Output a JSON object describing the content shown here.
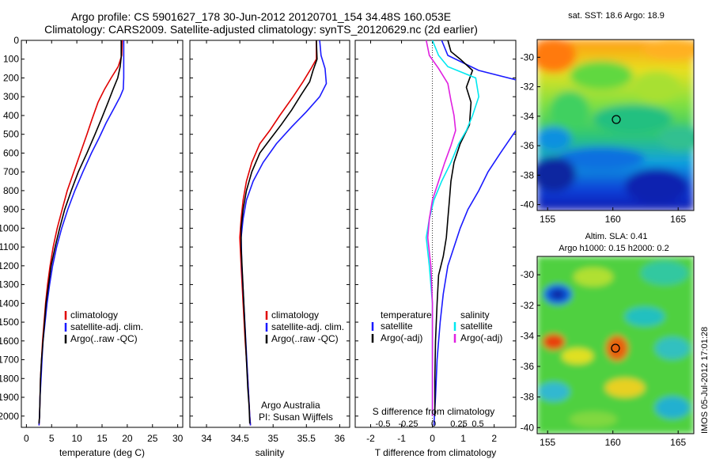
{
  "header": {
    "line1": "Argo profile: CS 5901627_178 30-Jun-2012 20120701_154 34.48S 160.053E",
    "line2": "Climatology: CARS2009. Satellite-adjusted climatology: synTS_20120629.nc (2d earlier)"
  },
  "colors": {
    "climatology": "#e00000",
    "satellite": "#1a1aff",
    "argo": "#000000",
    "cyan": "#00e8f0",
    "magenta": "#e020e0"
  },
  "credit": {
    "line1": "Argo Australia",
    "line2": "PI: Susan Wijffels"
  },
  "timestamp": "IMOS 05-Jul-2012 17:01:28",
  "chart_data": [
    {
      "type": "line",
      "id": "temperature",
      "xlabel": "temperature (deg C)",
      "xlim": [
        -1,
        31
      ],
      "ylim": [
        0,
        2060
      ],
      "xticks": [
        0,
        5,
        10,
        15,
        20,
        25,
        30
      ],
      "yticks": [
        0,
        100,
        200,
        300,
        400,
        500,
        600,
        700,
        800,
        900,
        1000,
        1100,
        1200,
        1300,
        1400,
        1500,
        1600,
        1700,
        1800,
        1900,
        2000
      ],
      "legend": [
        "climatology",
        "satellite-adj. clim.",
        "Argo(..raw -QC)"
      ],
      "series": [
        {
          "name": "climatology",
          "color": "climatology",
          "points": [
            [
              19,
              0
            ],
            [
              18.9,
              80
            ],
            [
              18.2,
              140
            ],
            [
              16.8,
              200
            ],
            [
              15.5,
              260
            ],
            [
              14.2,
              330
            ],
            [
              13,
              420
            ],
            [
              12,
              500
            ],
            [
              10.7,
              600
            ],
            [
              9.4,
              700
            ],
            [
              8.1,
              800
            ],
            [
              7.1,
              900
            ],
            [
              6.1,
              1000
            ],
            [
              5.3,
              1100
            ],
            [
              4.7,
              1200
            ],
            [
              4.2,
              1300
            ],
            [
              3.8,
              1400
            ],
            [
              3.5,
              1500
            ],
            [
              3.2,
              1600
            ],
            [
              3,
              1700
            ],
            [
              2.8,
              1800
            ],
            [
              2.7,
              1900
            ],
            [
              2.6,
              2000
            ],
            [
              2.5,
              2050
            ]
          ]
        },
        {
          "name": "satellite-adj. clim.",
          "color": "satellite",
          "points": [
            [
              19.3,
              0
            ],
            [
              19.3,
              100
            ],
            [
              19.3,
              200
            ],
            [
              19.2,
              260
            ],
            [
              18.6,
              300
            ],
            [
              17.4,
              360
            ],
            [
              15.8,
              440
            ],
            [
              14.4,
              520
            ],
            [
              12.9,
              600
            ],
            [
              11.2,
              700
            ],
            [
              9.6,
              800
            ],
            [
              8.2,
              900
            ],
            [
              7,
              1000
            ],
            [
              6,
              1100
            ],
            [
              5.2,
              1200
            ],
            [
              4.6,
              1300
            ],
            [
              4.1,
              1400
            ],
            [
              3.7,
              1500
            ],
            [
              3.3,
              1600
            ],
            [
              3.1,
              1700
            ],
            [
              2.9,
              1800
            ],
            [
              2.7,
              1900
            ],
            [
              2.6,
              2000
            ],
            [
              2.5,
              2050
            ]
          ]
        },
        {
          "name": "Argo(..raw -QC)",
          "color": "argo",
          "points": [
            [
              18.8,
              0
            ],
            [
              18.8,
              90
            ],
            [
              18.6,
              140
            ],
            [
              18.1,
              200
            ],
            [
              17.2,
              260
            ],
            [
              16.2,
              330
            ],
            [
              15,
              410
            ],
            [
              13.6,
              500
            ],
            [
              12,
              600
            ],
            [
              10.3,
              700
            ],
            [
              8.9,
              800
            ],
            [
              7.6,
              900
            ],
            [
              6.6,
              1000
            ],
            [
              5.7,
              1100
            ],
            [
              4.9,
              1200
            ],
            [
              4.4,
              1300
            ],
            [
              3.9,
              1400
            ],
            [
              3.6,
              1500
            ],
            [
              3.3,
              1600
            ],
            [
              3,
              1700
            ],
            [
              2.8,
              1800
            ],
            [
              2.7,
              1900
            ],
            [
              2.6,
              2000
            ],
            [
              2.5,
              2040
            ]
          ]
        }
      ]
    },
    {
      "type": "line",
      "id": "salinity",
      "xlabel": "salinity",
      "xlim": [
        33.75,
        36.15
      ],
      "ylim": [
        0,
        2060
      ],
      "xticks": [
        34,
        34.5,
        35,
        35.5,
        36
      ],
      "legend": [
        "climatology",
        "satellite-adj. clim.",
        "Argo(..raw -QC)"
      ],
      "series": [
        {
          "name": "climatology",
          "color": "climatology",
          "points": [
            [
              35.65,
              0
            ],
            [
              35.65,
              100
            ],
            [
              35.57,
              150
            ],
            [
              35.45,
              220
            ],
            [
              35.3,
              300
            ],
            [
              35.1,
              400
            ],
            [
              34.95,
              480
            ],
            [
              34.8,
              550
            ],
            [
              34.68,
              650
            ],
            [
              34.6,
              750
            ],
            [
              34.55,
              850
            ],
            [
              34.52,
              950
            ],
            [
              34.5,
              1050
            ],
            [
              34.52,
              1200
            ],
            [
              34.55,
              1400
            ],
            [
              34.58,
              1600
            ],
            [
              34.62,
              1800
            ],
            [
              34.65,
              2000
            ],
            [
              34.66,
              2050
            ]
          ]
        },
        {
          "name": "satellite-adj. clim.",
          "color": "satellite",
          "points": [
            [
              35.7,
              0
            ],
            [
              35.72,
              80
            ],
            [
              35.78,
              150
            ],
            [
              35.8,
              230
            ],
            [
              35.7,
              300
            ],
            [
              35.5,
              380
            ],
            [
              35.28,
              460
            ],
            [
              35.05,
              550
            ],
            [
              34.85,
              650
            ],
            [
              34.7,
              750
            ],
            [
              34.6,
              850
            ],
            [
              34.55,
              950
            ],
            [
              34.52,
              1050
            ],
            [
              34.53,
              1200
            ],
            [
              34.56,
              1400
            ],
            [
              34.59,
              1600
            ],
            [
              34.62,
              1800
            ],
            [
              34.65,
              2000
            ],
            [
              34.66,
              2050
            ]
          ]
        },
        {
          "name": "Argo(..raw -QC)",
          "color": "argo",
          "points": [
            [
              35.65,
              0
            ],
            [
              35.66,
              100
            ],
            [
              35.6,
              160
            ],
            [
              35.55,
              220
            ],
            [
              35.42,
              290
            ],
            [
              35.28,
              370
            ],
            [
              35.12,
              450
            ],
            [
              34.97,
              520
            ],
            [
              34.8,
              600
            ],
            [
              34.68,
              700
            ],
            [
              34.6,
              800
            ],
            [
              34.55,
              900
            ],
            [
              34.52,
              1000
            ],
            [
              34.52,
              1100
            ],
            [
              34.54,
              1250
            ],
            [
              34.56,
              1400
            ],
            [
              34.58,
              1550
            ],
            [
              34.6,
              1700
            ],
            [
              34.62,
              1850
            ],
            [
              34.64,
              1950
            ],
            [
              34.65,
              2040
            ]
          ]
        }
      ]
    },
    {
      "type": "line",
      "id": "difference",
      "xlabel": "T difference from climatology",
      "xlabel_top": "S difference from climatology",
      "xlim": [
        -2.5,
        2.7
      ],
      "ylim": [
        0,
        2060
      ],
      "xticks": [
        -2,
        -1,
        0,
        1,
        2
      ],
      "s_ticks": [
        "-0.5",
        "-0.25",
        "0",
        "0.25",
        "0.5"
      ],
      "legend_titles": [
        "temperature",
        "salinity"
      ],
      "legend_left": [
        "satellite",
        "Argo(-adj)"
      ],
      "legend_right": [
        "satellite",
        "Argo(-adj)"
      ],
      "series": [
        {
          "name": "T satellite",
          "color": "satellite",
          "points": [
            [
              0.3,
              0
            ],
            [
              0.5,
              80
            ],
            [
              1.5,
              160
            ],
            [
              2.7,
              210
            ]
          ]
        },
        {
          "name": "T satellite deep",
          "color": "satellite",
          "points": [
            [
              2.7,
              480
            ],
            [
              2.2,
              600
            ],
            [
              1.8,
              700
            ],
            [
              1.5,
              800
            ],
            [
              1.15,
              900
            ],
            [
              0.9,
              1000
            ],
            [
              0.7,
              1100
            ],
            [
              0.5,
              1200
            ],
            [
              0.35,
              1350
            ],
            [
              0.25,
              1500
            ],
            [
              0.15,
              1700
            ],
            [
              0.1,
              1900
            ],
            [
              0.05,
              2050
            ]
          ]
        },
        {
          "name": "T Argo(-adj)",
          "color": "argo",
          "points": [
            [
              0.5,
              0
            ],
            [
              0.6,
              60
            ],
            [
              0.9,
              100
            ],
            [
              1.3,
              160
            ],
            [
              1.1,
              250
            ],
            [
              1.25,
              330
            ],
            [
              1.2,
              450
            ],
            [
              0.9,
              550
            ],
            [
              0.7,
              650
            ],
            [
              0.6,
              750
            ],
            [
              0.55,
              850
            ],
            [
              0.5,
              950
            ],
            [
              0.45,
              1050
            ],
            [
              0.35,
              1150
            ],
            [
              0.2,
              1250
            ],
            [
              0.15,
              1400
            ],
            [
              0.1,
              1600
            ],
            [
              0.08,
              1800
            ],
            [
              0.08,
              2000
            ]
          ]
        },
        {
          "name": "S satellite",
          "color": "cyan",
          "points": [
            [
              0,
              0
            ],
            [
              0.2,
              80
            ],
            [
              0.5,
              140
            ],
            [
              1.4,
              200
            ],
            [
              1.5,
              300
            ],
            [
              1.3,
              400
            ],
            [
              1.1,
              480
            ],
            [
              0.85,
              550
            ],
            [
              0.6,
              650
            ],
            [
              0.3,
              750
            ],
            [
              0.05,
              850
            ],
            [
              -0.1,
              950
            ],
            [
              -0.2,
              1050
            ],
            [
              -0.1,
              1200
            ],
            [
              0,
              1400
            ],
            [
              0,
              1600
            ],
            [
              0,
              1800
            ],
            [
              0,
              2000
            ]
          ]
        },
        {
          "name": "S Argo(-adj)",
          "color": "magenta",
          "points": [
            [
              -0.2,
              0
            ],
            [
              -0.1,
              80
            ],
            [
              0.2,
              150
            ],
            [
              0.5,
              230
            ],
            [
              0.6,
              320
            ],
            [
              0.7,
              400
            ],
            [
              0.75,
              480
            ],
            [
              0.6,
              560
            ],
            [
              0.4,
              650
            ],
            [
              0.2,
              750
            ],
            [
              0,
              850
            ],
            [
              -0.1,
              950
            ],
            [
              -0.15,
              1050
            ],
            [
              -0.05,
              1200
            ],
            [
              0,
              1400
            ],
            [
              0,
              1600
            ],
            [
              0,
              1800
            ],
            [
              0,
              2000
            ]
          ]
        }
      ]
    },
    {
      "type": "heatmap",
      "id": "sst-map",
      "title": "sat. SST: 18.6 Argo: 18.9",
      "xticks": [
        155,
        160,
        165
      ],
      "yticks": [
        -30,
        -32,
        -34,
        -36,
        -38,
        -40
      ],
      "xlim": [
        154.2,
        166.2
      ],
      "ylim": [
        -40.4,
        -28.8
      ],
      "marker": [
        160.05,
        -34.48
      ]
    },
    {
      "type": "heatmap",
      "id": "sla-map",
      "title_line1": "Altim. SLA: 0.41",
      "title_line2": "Argo h1000: 0.15 h2000: 0.2",
      "xticks": [
        155,
        160,
        165
      ],
      "yticks": [
        -30,
        -32,
        -34,
        -36,
        -38,
        -40
      ],
      "xlim": [
        154.2,
        166.2
      ],
      "ylim": [
        -40.4,
        -28.8
      ],
      "marker": [
        160.05,
        -34.48
      ]
    }
  ]
}
